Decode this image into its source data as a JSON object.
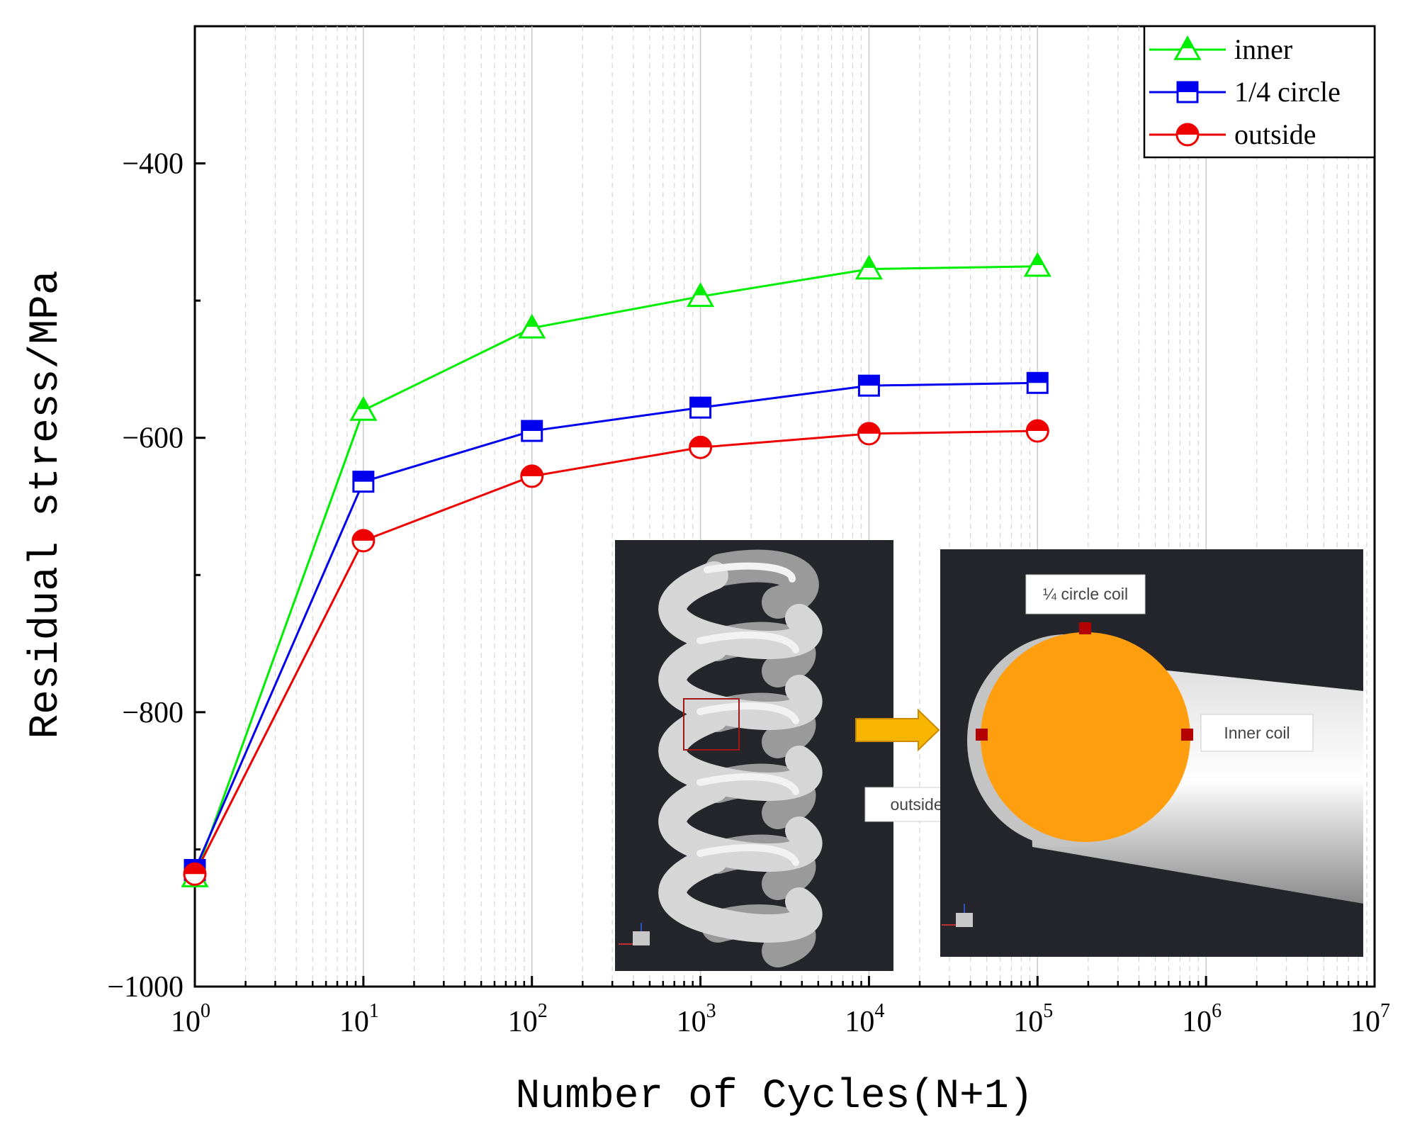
{
  "chart_data": {
    "type": "line",
    "xscale": "log",
    "xlabel": "Number of Cycles(N+1)",
    "ylabel": "Residual stress/MPa",
    "xlim": [
      1,
      10000000
    ],
    "ylim": [
      -1000,
      -300
    ],
    "x": [
      1,
      10,
      100,
      1000,
      10000,
      100000
    ],
    "y_ticks": [
      -400,
      -600,
      -800,
      -1000
    ],
    "y_tick_labels": [
      "−400",
      "−600",
      "−800",
      "−1000"
    ],
    "x_tick_labels": [
      {
        "base": "10",
        "exp": "0"
      },
      {
        "base": "10",
        "exp": "1"
      },
      {
        "base": "10",
        "exp": "2"
      },
      {
        "base": "10",
        "exp": "3"
      },
      {
        "base": "10",
        "exp": "4"
      },
      {
        "base": "10",
        "exp": "5"
      },
      {
        "base": "10",
        "exp": "6"
      },
      {
        "base": "10",
        "exp": "7"
      }
    ],
    "series": [
      {
        "name": "inner",
        "color": "#00ee00",
        "marker": "triangle",
        "values": [
          -920,
          -580,
          -520,
          -497,
          -477,
          -475
        ]
      },
      {
        "name": "1/4 circle",
        "color": "#0000ee",
        "marker": "square",
        "values": [
          -915,
          -632,
          -595,
          -578,
          -562,
          -560
        ]
      },
      {
        "name": "outside",
        "color": "#ee0000",
        "marker": "circle",
        "values": [
          -918,
          -675,
          -628,
          -607,
          -597,
          -595
        ]
      }
    ],
    "legend": "top-right",
    "grid": "vertical",
    "inset": {
      "left_panel": {
        "label": "outside coil"
      },
      "right_panel": {
        "labels": [
          "¼ circle coil",
          "Inner coil"
        ]
      },
      "colors": {
        "background": "#25262b",
        "cross_section": "#ff9f10",
        "marker": "#b30000",
        "arrow": "#f7b500"
      }
    }
  }
}
